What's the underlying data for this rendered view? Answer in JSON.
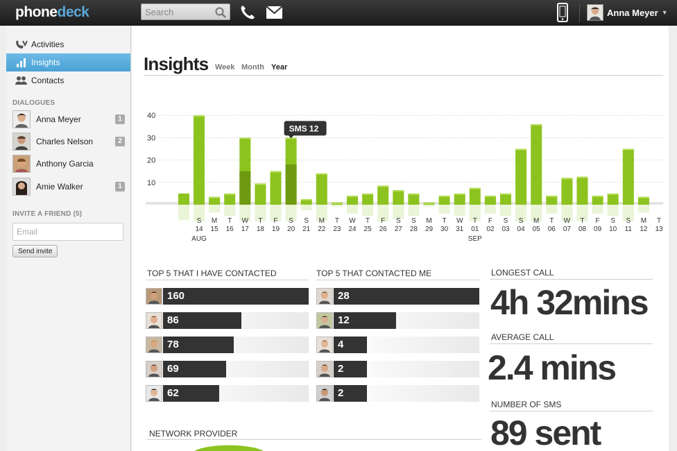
{
  "app": {
    "logo_part1": "phone",
    "logo_part2": "deck",
    "search_placeholder": "Search",
    "user_name": "Anna Meyer"
  },
  "sidebar": {
    "nav": [
      {
        "label": "Activities",
        "icon": "activities-icon"
      },
      {
        "label": "Insights",
        "icon": "bar-chart-icon",
        "active": true
      },
      {
        "label": "Contacts",
        "icon": "contacts-icon"
      }
    ],
    "dialogues_label": "DIALOGUES",
    "dialogues": [
      {
        "name": "Anna Meyer",
        "count": "1"
      },
      {
        "name": "Charles Nelson",
        "count": "2"
      },
      {
        "name": "Anthony Garcia",
        "count": ""
      },
      {
        "name": "Amie Walker",
        "count": "1"
      }
    ],
    "invite_label": "INVITE A FRIEND (5)",
    "email_placeholder": "Email",
    "send_label": "Send invite"
  },
  "main": {
    "title": "Insights",
    "periods": [
      "Week",
      "Month",
      "Year"
    ],
    "active_period": "Year"
  },
  "chart_data": {
    "type": "bar",
    "yticks": [
      10,
      20,
      30,
      40
    ],
    "ylim": [
      0,
      45
    ],
    "tooltip": "SMS 12",
    "tooltip_index": 6,
    "colors": {
      "calls": "#8cc31f",
      "sms": "#6e9a12"
    },
    "categories": [
      {
        "day": "S",
        "date": "14",
        "month": "AUG"
      },
      {
        "day": "M",
        "date": "15"
      },
      {
        "day": "T",
        "date": "16"
      },
      {
        "day": "W",
        "date": "17"
      },
      {
        "day": "T",
        "date": "18"
      },
      {
        "day": "F",
        "date": "19"
      },
      {
        "day": "S",
        "date": "20"
      },
      {
        "day": "S",
        "date": "21"
      },
      {
        "day": "M",
        "date": "22"
      },
      {
        "day": "T",
        "date": "23"
      },
      {
        "day": "W",
        "date": "24"
      },
      {
        "day": "T",
        "date": "25"
      },
      {
        "day": "F",
        "date": "26"
      },
      {
        "day": "S",
        "date": "27"
      },
      {
        "day": "S",
        "date": "28"
      },
      {
        "day": "M",
        "date": "29"
      },
      {
        "day": "T",
        "date": "30"
      },
      {
        "day": "W",
        "date": "31"
      },
      {
        "day": "T",
        "date": "01",
        "month": "SEP"
      },
      {
        "day": "F",
        "date": "02"
      },
      {
        "day": "S",
        "date": "03"
      },
      {
        "day": "S",
        "date": "04"
      },
      {
        "day": "M",
        "date": "05"
      },
      {
        "day": "T",
        "date": "06"
      },
      {
        "day": "W",
        "date": "07"
      },
      {
        "day": "T",
        "date": "08"
      },
      {
        "day": "F",
        "date": "09"
      },
      {
        "day": "S",
        "date": "10"
      },
      {
        "day": "S",
        "date": "11"
      },
      {
        "day": "M",
        "date": "12"
      },
      {
        "day": "T",
        "date": "13"
      }
    ],
    "pre_value": 5,
    "values": [
      40,
      3.5,
      5,
      30,
      9.5,
      15,
      30,
      2.5,
      14,
      1,
      4,
      5,
      8.5,
      6.5,
      5,
      1,
      4,
      5,
      7.5,
      4,
      5,
      25,
      36,
      4,
      12,
      12.5,
      4,
      5,
      25,
      3.5,
      0
    ],
    "sms": [
      0,
      0,
      0,
      15,
      0,
      0,
      18,
      0,
      0,
      0,
      0,
      0,
      0,
      0,
      0,
      0,
      0,
      0,
      0,
      0,
      0,
      0,
      0,
      0,
      0,
      0,
      0,
      0,
      0,
      0,
      0
    ]
  },
  "top_contacted": {
    "heading": "TOP 5 THAT I HAVE CONTACTED",
    "max": 160,
    "items": [
      {
        "value": 160
      },
      {
        "value": 86
      },
      {
        "value": 78
      },
      {
        "value": 69
      },
      {
        "value": 62
      }
    ]
  },
  "top_contacted_me": {
    "heading": "TOP 5 THAT CONTACTED ME",
    "max": 28,
    "items": [
      {
        "value": 28
      },
      {
        "value": 12
      },
      {
        "value": 4
      },
      {
        "value": 2
      },
      {
        "value": 2
      }
    ]
  },
  "stats": {
    "longest_label": "LONGEST CALL",
    "longest_value": "4h 32mins",
    "average_label": "AVERAGE CALL",
    "average_value": "2.4 mins",
    "sms_label": "NUMBER OF SMS",
    "sms_value": "89 sent"
  },
  "network": {
    "heading": "NETWORK PROVIDER"
  }
}
